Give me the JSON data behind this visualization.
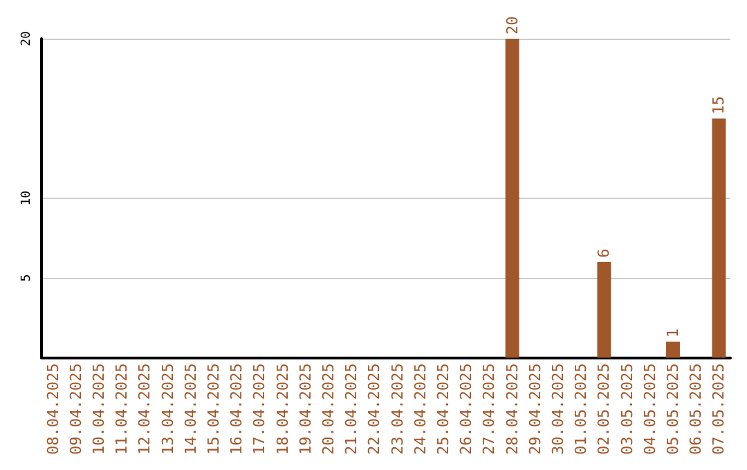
{
  "chart_data": {
    "type": "bar",
    "categories": [
      "08.04.2025",
      "09.04.2025",
      "10.04.2025",
      "11.04.2025",
      "12.04.2025",
      "13.04.2025",
      "14.04.2025",
      "15.04.2025",
      "16.04.2025",
      "17.04.2025",
      "18.04.2025",
      "19.04.2025",
      "20.04.2025",
      "21.04.2025",
      "22.04.2025",
      "23.04.2025",
      "24.04.2025",
      "25.04.2025",
      "26.04.2025",
      "27.04.2025",
      "28.04.2025",
      "29.04.2025",
      "30.04.2025",
      "01.05.2025",
      "02.05.2025",
      "03.05.2025",
      "04.05.2025",
      "05.05.2025",
      "06.05.2025",
      "07.05.2025"
    ],
    "values": [
      0,
      0,
      0,
      0,
      0,
      0,
      0,
      0,
      0,
      0,
      0,
      0,
      0,
      0,
      0,
      0,
      0,
      0,
      0,
      0,
      20,
      0,
      0,
      0,
      6,
      0,
      0,
      1,
      0,
      15
    ],
    "value_labels": [
      null,
      null,
      null,
      null,
      null,
      null,
      null,
      null,
      null,
      null,
      null,
      null,
      null,
      null,
      null,
      null,
      null,
      null,
      null,
      null,
      "20",
      null,
      null,
      null,
      "6",
      null,
      null,
      "1",
      null,
      "15"
    ],
    "color": "#a0572a",
    "ylim": [
      0,
      20
    ],
    "yticks": [
      5,
      10,
      20
    ],
    "grid": "y"
  }
}
